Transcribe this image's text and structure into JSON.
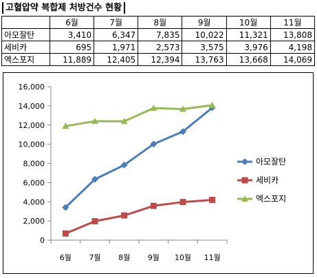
{
  "title": "고혈압약 복합제 처방건수 현황",
  "table": {
    "corner": "",
    "columns": [
      "6월",
      "7월",
      "8월",
      "9월",
      "10월",
      "11월"
    ],
    "rows": [
      {
        "label": "아모잘탄",
        "cells": [
          "3,410",
          "6,347",
          "7,835",
          "10,022",
          "11,321",
          "13,808"
        ]
      },
      {
        "label": "세비카",
        "cells": [
          "695",
          "1,971",
          "2,573",
          "3,575",
          "3,976",
          "4,198"
        ]
      },
      {
        "label": "엑스포지",
        "cells": [
          "11,889",
          "12,405",
          "12,394",
          "13,763",
          "13,668",
          "14,069"
        ]
      }
    ]
  },
  "chart_data": {
    "type": "line",
    "title": "",
    "xlabel": "",
    "ylabel": "",
    "categories": [
      "6월",
      "7월",
      "8월",
      "9월",
      "10월",
      "11월"
    ],
    "y_ticks": [
      "0",
      "2,000",
      "4,000",
      "6,000",
      "8,000",
      "10,000",
      "12,000",
      "14,000",
      "16,000"
    ],
    "ylim": [
      0,
      16000
    ],
    "grid": false,
    "legend_position": "right",
    "series": [
      {
        "name": "아모잘탄",
        "color": "#4a7ebb",
        "marker": "diamond",
        "values": [
          3410,
          6347,
          7835,
          10022,
          11321,
          13808
        ]
      },
      {
        "name": "세비카",
        "color": "#be4b48",
        "marker": "square",
        "values": [
          695,
          1971,
          2573,
          3575,
          3976,
          4198
        ]
      },
      {
        "name": "엑스포지",
        "color": "#98b954",
        "marker": "triangle",
        "values": [
          11889,
          12405,
          12394,
          13763,
          13668,
          14069
        ]
      }
    ]
  }
}
